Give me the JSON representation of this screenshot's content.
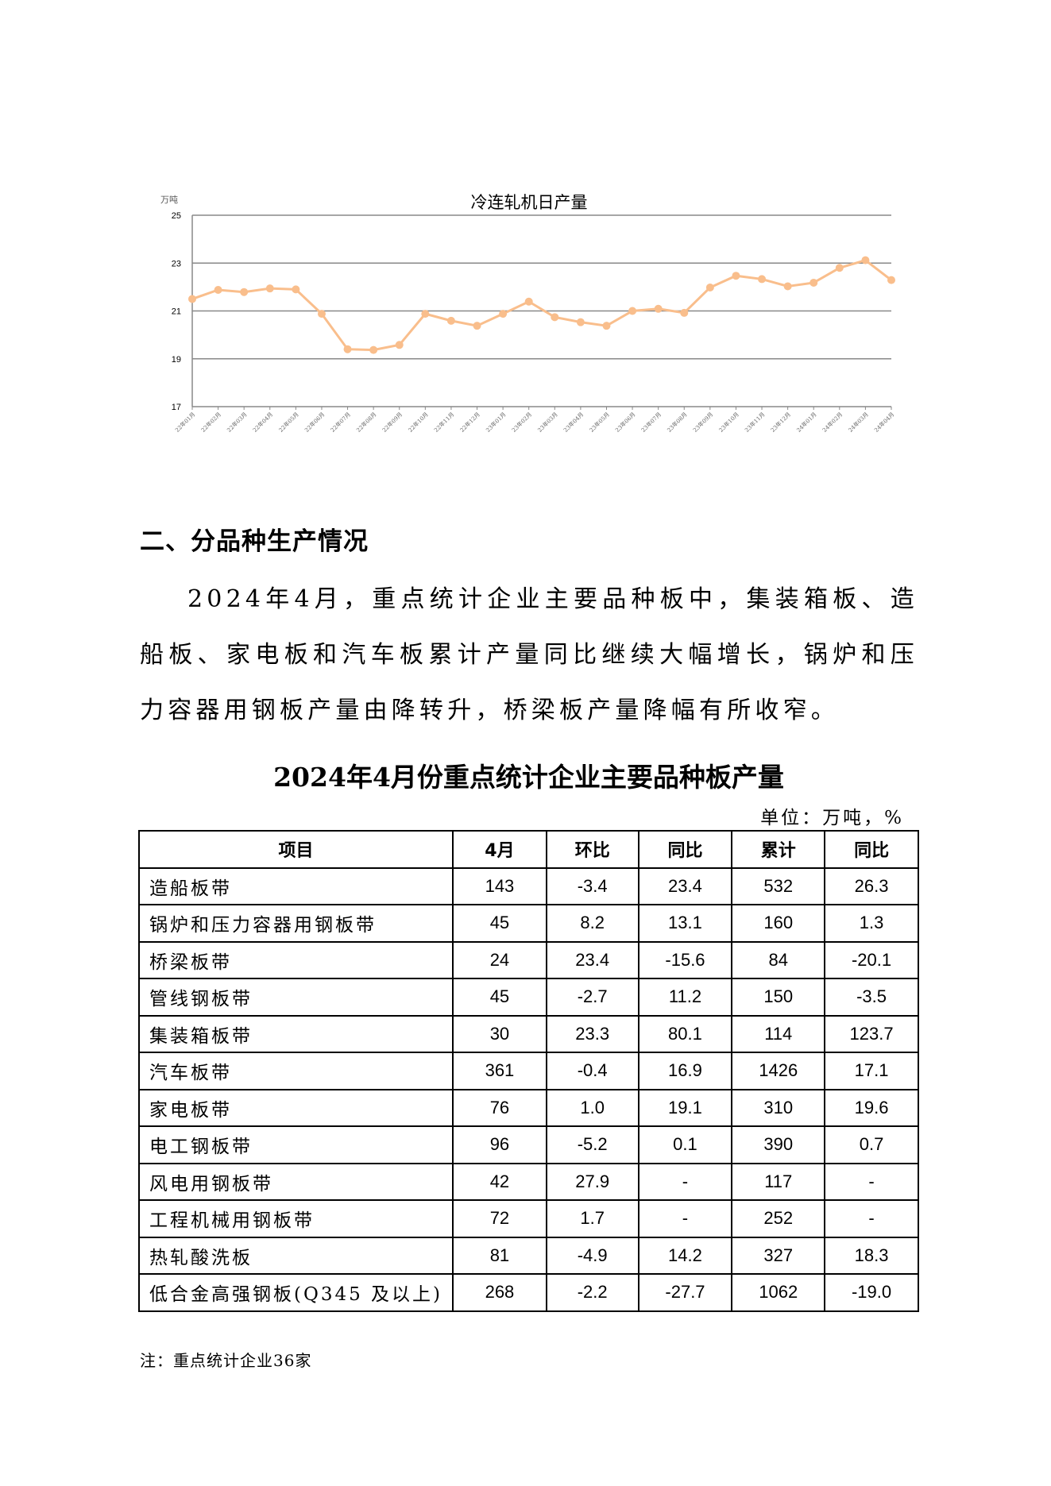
{
  "chart_data": {
    "type": "line",
    "title": "冷连轧机日产量",
    "unit_label": "万吨",
    "ylim": [
      17,
      25
    ],
    "yticks": [
      17,
      19,
      21,
      23,
      25
    ],
    "grid": true,
    "color": "#F9BE8C",
    "categories": [
      "22年01月",
      "22年02月",
      "22年03月",
      "22年04月",
      "22年05月",
      "22年06月",
      "22年07月",
      "22年08月",
      "22年09月",
      "22年10月",
      "22年11月",
      "22年12月",
      "23年01月",
      "23年02月",
      "23年03月",
      "23年04月",
      "23年05月",
      "23年06月",
      "23年07月",
      "23年08月",
      "23年09月",
      "23年10月",
      "23年11月",
      "23年12月",
      "24年01月",
      "24年02月",
      "24年03月",
      "24年04月"
    ],
    "values": [
      21.5,
      21.88,
      21.79,
      21.94,
      21.9,
      20.88,
      19.4,
      19.37,
      19.58,
      20.88,
      20.59,
      20.38,
      20.88,
      21.39,
      20.74,
      20.53,
      20.38,
      21.0,
      21.09,
      20.92,
      21.98,
      22.47,
      22.33,
      22.03,
      22.18,
      22.8,
      23.12,
      22.29
    ]
  },
  "section": {
    "heading": "二、分品种生产情况",
    "paragraph": "2024年4月，重点统计企业主要品种板中，集装箱板、造船板、家电板和汽车板累计产量同比继续大幅增长，锅炉和压力容器用钢板产量由降转升，桥梁板产量降幅有所收窄。"
  },
  "table": {
    "title": "2024年4月份重点统计企业主要品种板产量",
    "unit": "单位：万吨，%",
    "headers": [
      "项目",
      "4月",
      "环比",
      "同比",
      "累计",
      "同比"
    ],
    "rows": [
      [
        "造船板带",
        "143",
        "-3.4",
        "23.4",
        "532",
        "26.3"
      ],
      [
        "锅炉和压力容器用钢板带",
        "45",
        "8.2",
        "13.1",
        "160",
        "1.3"
      ],
      [
        "桥梁板带",
        "24",
        "23.4",
        "-15.6",
        "84",
        "-20.1"
      ],
      [
        "管线钢板带",
        "45",
        "-2.7",
        "11.2",
        "150",
        "-3.5"
      ],
      [
        "集装箱板带",
        "30",
        "23.3",
        "80.1",
        "114",
        "123.7"
      ],
      [
        "汽车板带",
        "361",
        "-0.4",
        "16.9",
        "1426",
        "17.1"
      ],
      [
        "家电板带",
        "76",
        "1.0",
        "19.1",
        "310",
        "19.6"
      ],
      [
        "电工钢板带",
        "96",
        "-5.2",
        "0.1",
        "390",
        "0.7"
      ],
      [
        "风电用钢板带",
        "42",
        "27.9",
        "-",
        "117",
        "-"
      ],
      [
        "工程机械用钢板带",
        "72",
        "1.7",
        "-",
        "252",
        "-"
      ],
      [
        "热轧酸洗板",
        "81",
        "-4.9",
        "14.2",
        "327",
        "18.3"
      ],
      [
        "低合金高强钢板(Q345 及以上)",
        "268",
        "-2.2",
        "-27.7",
        "1062",
        "-19.0"
      ]
    ],
    "note": "注：重点统计企业36家"
  }
}
